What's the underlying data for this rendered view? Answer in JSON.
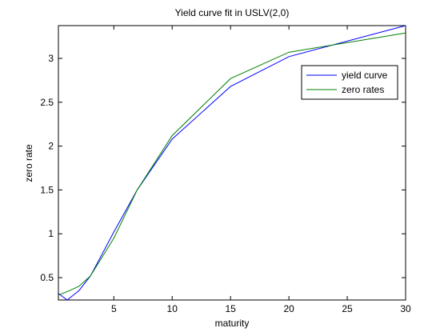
{
  "chart_data": {
    "type": "line",
    "title": "Yield curve fit in USLV(2,0)",
    "x_label": "maturity",
    "y_label": "zero rate",
    "x": [
      0.25,
      1,
      2,
      3,
      5,
      7,
      10,
      15,
      20,
      30
    ],
    "series": [
      {
        "name": "yield curve",
        "color": "#0000ff",
        "values": [
          0.32,
          0.245,
          0.35,
          0.52,
          1.02,
          1.5,
          2.08,
          2.68,
          3.02,
          3.374
        ]
      },
      {
        "name": "zero rates",
        "color": "#008000",
        "values": [
          0.3,
          0.34,
          0.4,
          0.52,
          0.95,
          1.5,
          2.12,
          2.77,
          3.07,
          3.29
        ]
      }
    ],
    "xlim": [
      0.25,
      30
    ],
    "ylim": [
      0.245,
      3.374
    ],
    "xticks": [
      5,
      10,
      15,
      20,
      25,
      30
    ],
    "yticks": [
      0.5,
      1,
      1.5,
      2,
      2.5,
      3
    ],
    "legend": "upper-right"
  }
}
